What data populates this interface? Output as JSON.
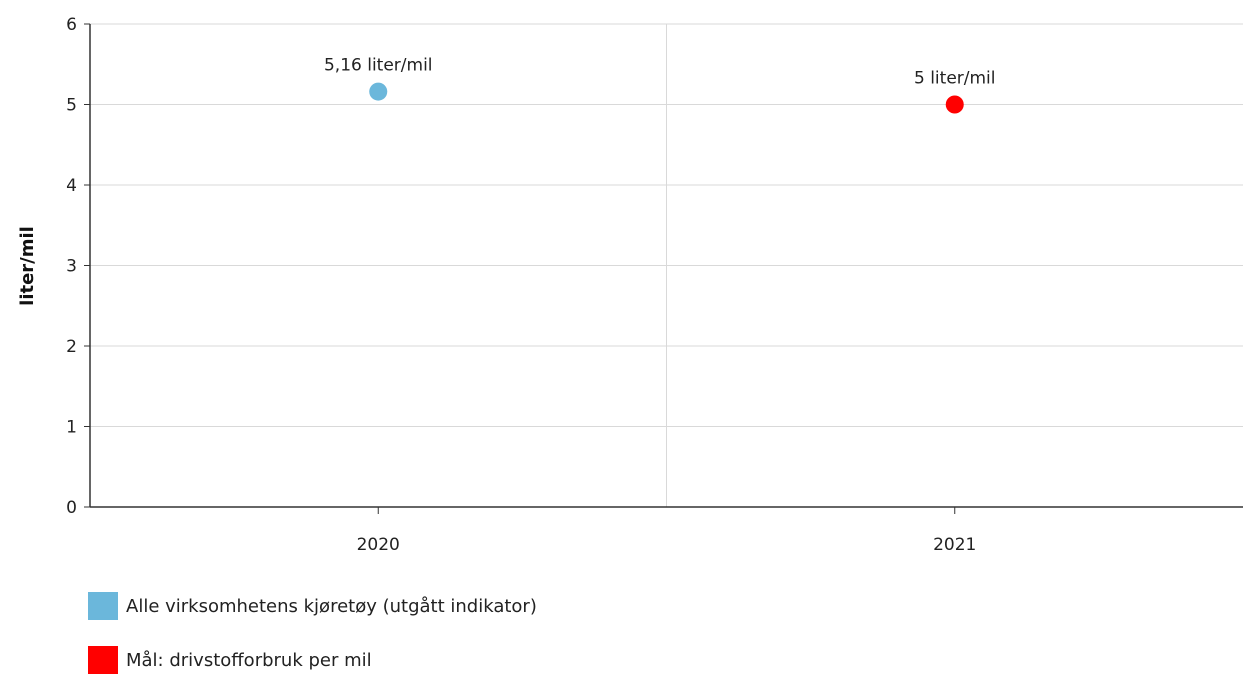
{
  "chart_data": {
    "type": "scatter",
    "ylabel": "liter/mil",
    "xlabel": "",
    "categories": [
      "2020",
      "2021"
    ],
    "ylim": [
      0,
      6
    ],
    "yticks": [
      0,
      1,
      2,
      3,
      4,
      5,
      6
    ],
    "grid": true,
    "legend_position": "bottom-left",
    "series": [
      {
        "name": "Alle virksomhetens kjøretøy (utgått indikator)",
        "color": "#6bb7db",
        "points": [
          {
            "x": "2020",
            "y": 5.16,
            "label": "5,16 liter/mil"
          }
        ]
      },
      {
        "name": "Mål: drivstofforbruk per mil",
        "color": "#ff0000",
        "points": [
          {
            "x": "2021",
            "y": 5.0,
            "label": "5 liter/mil"
          }
        ]
      }
    ]
  }
}
